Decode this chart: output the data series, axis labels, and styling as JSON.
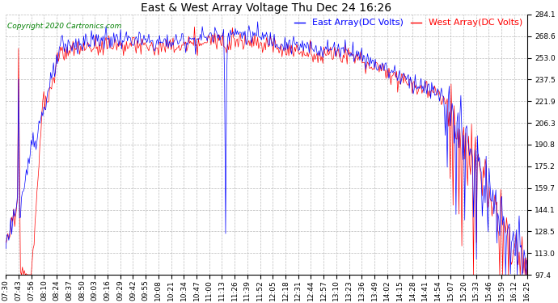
{
  "title": "East & West Array Voltage Thu Dec 24 16:26",
  "copyright": "Copyright 2020 Cartronics.com",
  "legend_east": "East Array(DC Volts)",
  "legend_west": "West Array(DC Volts)",
  "east_color": "blue",
  "west_color": "red",
  "background_color": "#ffffff",
  "grid_color": "#aaaaaa",
  "yticks": [
    97.4,
    113.0,
    128.5,
    144.1,
    159.7,
    175.2,
    190.8,
    206.3,
    221.9,
    237.5,
    253.0,
    268.6,
    284.1
  ],
  "ymin": 97.4,
  "ymax": 284.1,
  "title_fontsize": 10,
  "tick_fontsize": 6.5,
  "legend_fontsize": 8
}
